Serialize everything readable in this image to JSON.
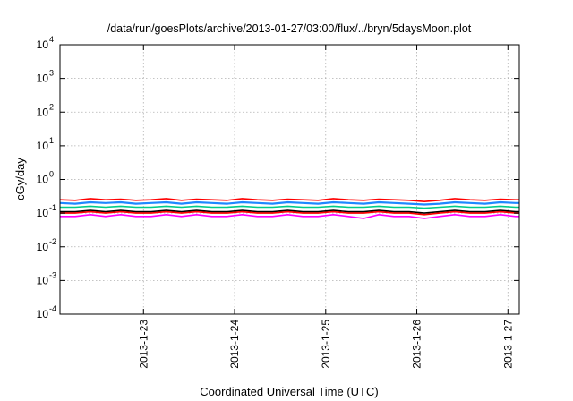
{
  "chart_data": {
    "type": "line",
    "title": "/data/run/goesPlots/archive/2013-01-27/03:00/flux/../bryn/5daysMoon.plot",
    "xlabel": "Coordinated Universal Time (UTC)",
    "ylabel": "cGy/day",
    "yscale": "log",
    "ylim": [
      0.0001,
      10000
    ],
    "xlim": [
      "2013-01-22T02:00",
      "2013-01-27T03:00"
    ],
    "x_ticks": [
      "2013-1-23",
      "2013-1-24",
      "2013-1-25",
      "2013-1-26",
      "2013-1-27"
    ],
    "y_ticks": [
      {
        "value": 0.0001,
        "base": "10",
        "exp": "-4"
      },
      {
        "value": 0.001,
        "base": "10",
        "exp": "-3"
      },
      {
        "value": 0.01,
        "base": "10",
        "exp": "-2"
      },
      {
        "value": 0.1,
        "base": "10",
        "exp": "-1"
      },
      {
        "value": 1,
        "base": "10",
        "exp": "0"
      },
      {
        "value": 10,
        "base": "10",
        "exp": "1"
      },
      {
        "value": 100,
        "base": "10",
        "exp": "2"
      },
      {
        "value": 1000,
        "base": "10",
        "exp": "3"
      },
      {
        "value": 10000,
        "base": "10",
        "exp": "4"
      }
    ],
    "grid": true,
    "legend": "none",
    "x": [
      "2013-01-22T02:00",
      "2013-01-22T06:00",
      "2013-01-22T10:00",
      "2013-01-22T14:00",
      "2013-01-22T18:00",
      "2013-01-22T22:00",
      "2013-01-23T02:00",
      "2013-01-23T06:00",
      "2013-01-23T10:00",
      "2013-01-23T14:00",
      "2013-01-23T18:00",
      "2013-01-23T22:00",
      "2013-01-24T02:00",
      "2013-01-24T06:00",
      "2013-01-24T10:00",
      "2013-01-24T14:00",
      "2013-01-24T18:00",
      "2013-01-24T22:00",
      "2013-01-25T02:00",
      "2013-01-25T06:00",
      "2013-01-25T10:00",
      "2013-01-25T14:00",
      "2013-01-25T18:00",
      "2013-01-25T22:00",
      "2013-01-26T02:00",
      "2013-01-26T06:00",
      "2013-01-26T10:00",
      "2013-01-26T14:00",
      "2013-01-26T18:00",
      "2013-01-26T22:00",
      "2013-01-27T02:00",
      "2013-01-27T03:00"
    ],
    "series": [
      {
        "color": "#ff00ff",
        "values": [
          0.08,
          0.08,
          0.09,
          0.08,
          0.09,
          0.08,
          0.08,
          0.09,
          0.08,
          0.09,
          0.08,
          0.08,
          0.09,
          0.08,
          0.08,
          0.09,
          0.08,
          0.08,
          0.09,
          0.08,
          0.07,
          0.09,
          0.08,
          0.08,
          0.07,
          0.08,
          0.09,
          0.08,
          0.08,
          0.09,
          0.08,
          0.08
        ]
      },
      {
        "color": "#000000",
        "values": [
          0.11,
          0.11,
          0.12,
          0.11,
          0.12,
          0.11,
          0.11,
          0.12,
          0.11,
          0.12,
          0.11,
          0.11,
          0.12,
          0.11,
          0.11,
          0.12,
          0.11,
          0.11,
          0.12,
          0.11,
          0.11,
          0.12,
          0.11,
          0.11,
          0.1,
          0.11,
          0.12,
          0.11,
          0.11,
          0.12,
          0.11,
          0.11
        ]
      },
      {
        "color": "#ff0000",
        "values": [
          0.1,
          0.1,
          0.11,
          0.1,
          0.11,
          0.1,
          0.1,
          0.11,
          0.1,
          0.11,
          0.1,
          0.1,
          0.11,
          0.1,
          0.1,
          0.11,
          0.1,
          0.1,
          0.11,
          0.1,
          0.1,
          0.11,
          0.1,
          0.1,
          0.09,
          0.1,
          0.11,
          0.1,
          0.1,
          0.11,
          0.1,
          0.1
        ]
      },
      {
        "color": "#00cc88",
        "values": [
          0.15,
          0.15,
          0.16,
          0.15,
          0.16,
          0.15,
          0.15,
          0.16,
          0.15,
          0.16,
          0.15,
          0.15,
          0.16,
          0.15,
          0.15,
          0.16,
          0.15,
          0.15,
          0.16,
          0.15,
          0.15,
          0.16,
          0.15,
          0.15,
          0.14,
          0.15,
          0.16,
          0.15,
          0.15,
          0.16,
          0.15,
          0.15
        ]
      },
      {
        "color": "#ff0000",
        "values": [
          0.25,
          0.24,
          0.27,
          0.25,
          0.26,
          0.24,
          0.25,
          0.27,
          0.24,
          0.26,
          0.25,
          0.24,
          0.27,
          0.25,
          0.24,
          0.26,
          0.25,
          0.24,
          0.27,
          0.25,
          0.24,
          0.26,
          0.25,
          0.24,
          0.22,
          0.24,
          0.27,
          0.25,
          0.24,
          0.26,
          0.25,
          0.25
        ]
      },
      {
        "color": "#1e88ff",
        "values": [
          0.2,
          0.19,
          0.21,
          0.2,
          0.21,
          0.19,
          0.2,
          0.21,
          0.19,
          0.21,
          0.2,
          0.19,
          0.21,
          0.2,
          0.19,
          0.21,
          0.2,
          0.19,
          0.21,
          0.2,
          0.19,
          0.21,
          0.2,
          0.19,
          0.18,
          0.19,
          0.21,
          0.2,
          0.19,
          0.21,
          0.2,
          0.2
        ]
      }
    ]
  }
}
